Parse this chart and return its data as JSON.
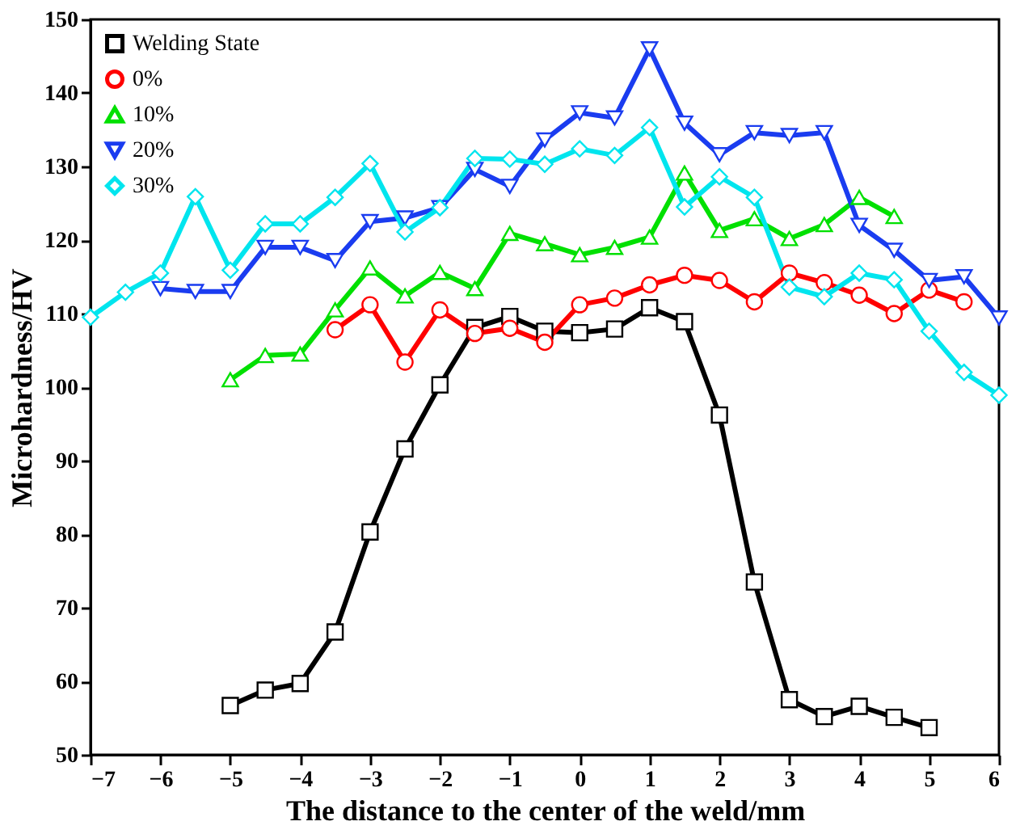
{
  "chart_data": {
    "type": "line",
    "xlabel": "The distance to the center of the weld/mm",
    "ylabel": "Microhardness/HV",
    "xlim": [
      -7,
      6
    ],
    "xticks": [
      -7,
      -6,
      -5,
      -4,
      -3,
      -2,
      -1,
      0,
      1,
      2,
      3,
      4,
      5,
      6
    ],
    "ylim": [
      50,
      150
    ],
    "yticks": [
      50,
      60,
      70,
      80,
      90,
      100,
      110,
      120,
      130,
      140,
      150
    ],
    "grid": false,
    "legend": "top left",
    "line_style": "solid",
    "series": [
      {
        "name": "Welding State",
        "color": "#000000",
        "marker": "square",
        "x": [
          -5,
          -4.5,
          -4,
          -3.5,
          -3,
          -2.5,
          -2,
          -1.5,
          -1,
          -0.5,
          0,
          0.5,
          1,
          1.5,
          2,
          2.5,
          3,
          3.5,
          4,
          4.5,
          5
        ],
        "values": [
          56.7,
          58.8,
          59.7,
          66.7,
          80.3,
          91.6,
          100.3,
          108.1,
          109.6,
          107.6,
          107.4,
          107.9,
          110.8,
          108.9,
          96.2,
          73.5,
          57.5,
          55.2,
          56.6,
          55.1,
          53.7
        ]
      },
      {
        "name": "0%",
        "color": "#ff0000",
        "marker": "circle",
        "x": [
          -3.5,
          -3,
          -2.5,
          -2,
          -1.5,
          -1,
          -0.5,
          0,
          0.5,
          1,
          1.5,
          2,
          2.5,
          3,
          3.5,
          4,
          4.5,
          5,
          5.5
        ],
        "values": [
          107.8,
          111.2,
          103.4,
          110.5,
          107.3,
          108.0,
          106.1,
          111.2,
          112.1,
          113.9,
          115.2,
          114.5,
          111.6,
          115.5,
          114.2,
          112.5,
          110.0,
          113.2,
          111.6
        ]
      },
      {
        "name": "10%",
        "color": "#00e000",
        "marker": "triangle",
        "x": [
          -5,
          -4.5,
          -4,
          -3.5,
          -3,
          -2.5,
          -2,
          -1.5,
          -1,
          -0.5,
          0,
          0.5,
          1,
          1.5,
          2,
          2.5,
          3,
          3.5,
          4,
          4.5
        ],
        "values": [
          101.0,
          104.3,
          104.5,
          110.5,
          116.2,
          112.4,
          115.6,
          113.4,
          120.9,
          119.5,
          118.0,
          119.0,
          120.4,
          129.1,
          121.3,
          122.9,
          120.2,
          122.1,
          125.8,
          123.2
        ]
      },
      {
        "name": "20%",
        "color": "#1a3cf0",
        "marker": "triangle-down",
        "x": [
          -6,
          -5.5,
          -5,
          -4.5,
          -4,
          -3.5,
          -3,
          -2.5,
          -2,
          -1.5,
          -1,
          -0.5,
          0,
          0.5,
          1,
          1.5,
          2,
          2.5,
          3,
          3.5,
          4,
          4.5,
          5,
          5.5,
          6
        ],
        "values": [
          113.4,
          113.0,
          113.0,
          119.0,
          119.0,
          117.2,
          122.5,
          123.0,
          124.4,
          129.6,
          127.3,
          133.6,
          137.3,
          136.6,
          146.0,
          135.9,
          131.6,
          134.6,
          134.2,
          134.6,
          122.0,
          118.6,
          114.5,
          115.0,
          109.4
        ]
      },
      {
        "name": "30%",
        "color": "#00e5ee",
        "marker": "diamond",
        "x": [
          -7,
          -6.5,
          -6,
          -5.5,
          -5,
          -4.5,
          -4,
          -3.5,
          -3,
          -2.5,
          -2,
          -1.5,
          -1,
          -0.5,
          0,
          0.5,
          1,
          1.5,
          2,
          2.5,
          3,
          3.5,
          4,
          4.5,
          5,
          5.5,
          6
        ],
        "values": [
          109.5,
          112.9,
          115.5,
          125.9,
          115.9,
          122.2,
          122.2,
          125.8,
          130.4,
          121.1,
          124.4,
          131.1,
          131.0,
          130.3,
          132.4,
          131.5,
          135.3,
          124.5,
          128.6,
          125.8,
          113.6,
          112.3,
          115.5,
          114.6,
          107.6,
          102.0,
          98.9
        ]
      }
    ]
  }
}
